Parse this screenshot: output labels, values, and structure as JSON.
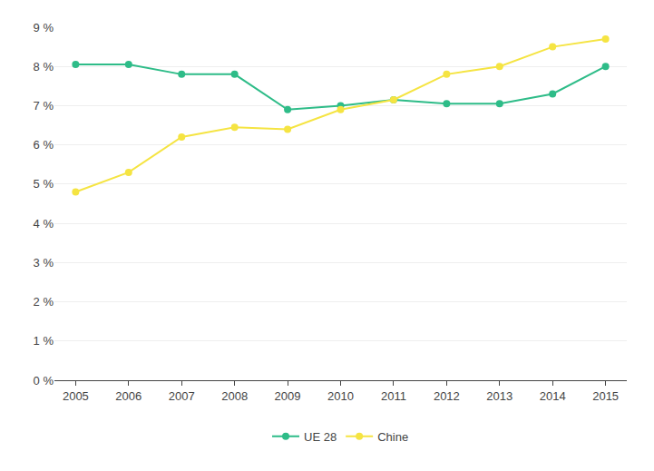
{
  "chart_data": {
    "type": "line",
    "x": [
      2005,
      2006,
      2007,
      2008,
      2009,
      2010,
      2011,
      2012,
      2013,
      2014,
      2015
    ],
    "xlim": [
      2004.6,
      2015.4
    ],
    "xticks": [
      2005,
      2006,
      2007,
      2008,
      2009,
      2010,
      2011,
      2012,
      2013,
      2014,
      2015
    ],
    "ylim": [
      0,
      9
    ],
    "yticks": [
      {
        "value": 0,
        "label": "0 %"
      },
      {
        "value": 1,
        "label": "1 %"
      },
      {
        "value": 2,
        "label": "2 %"
      },
      {
        "value": 3,
        "label": "3 %"
      },
      {
        "value": 4,
        "label": "4 %"
      },
      {
        "value": 5,
        "label": "5 %"
      },
      {
        "value": 6,
        "label": "6 %"
      },
      {
        "value": 7,
        "label": "7 %"
      },
      {
        "value": 8,
        "label": "8 %"
      },
      {
        "value": 9,
        "label": "9 %"
      }
    ],
    "series": [
      {
        "name": "UE 28",
        "color": "#2ebc88",
        "marker": "circle",
        "values": [
          8.05,
          8.05,
          7.8,
          7.8,
          6.9,
          7.0,
          7.15,
          7.05,
          7.05,
          7.3,
          8.0
        ]
      },
      {
        "name": "Chine",
        "color": "#f5e442",
        "marker": "circle",
        "values": [
          4.8,
          5.3,
          6.2,
          6.45,
          6.4,
          6.9,
          7.15,
          7.8,
          8.0,
          8.5,
          8.7
        ]
      }
    ],
    "grid": true,
    "legend": "bottom"
  }
}
